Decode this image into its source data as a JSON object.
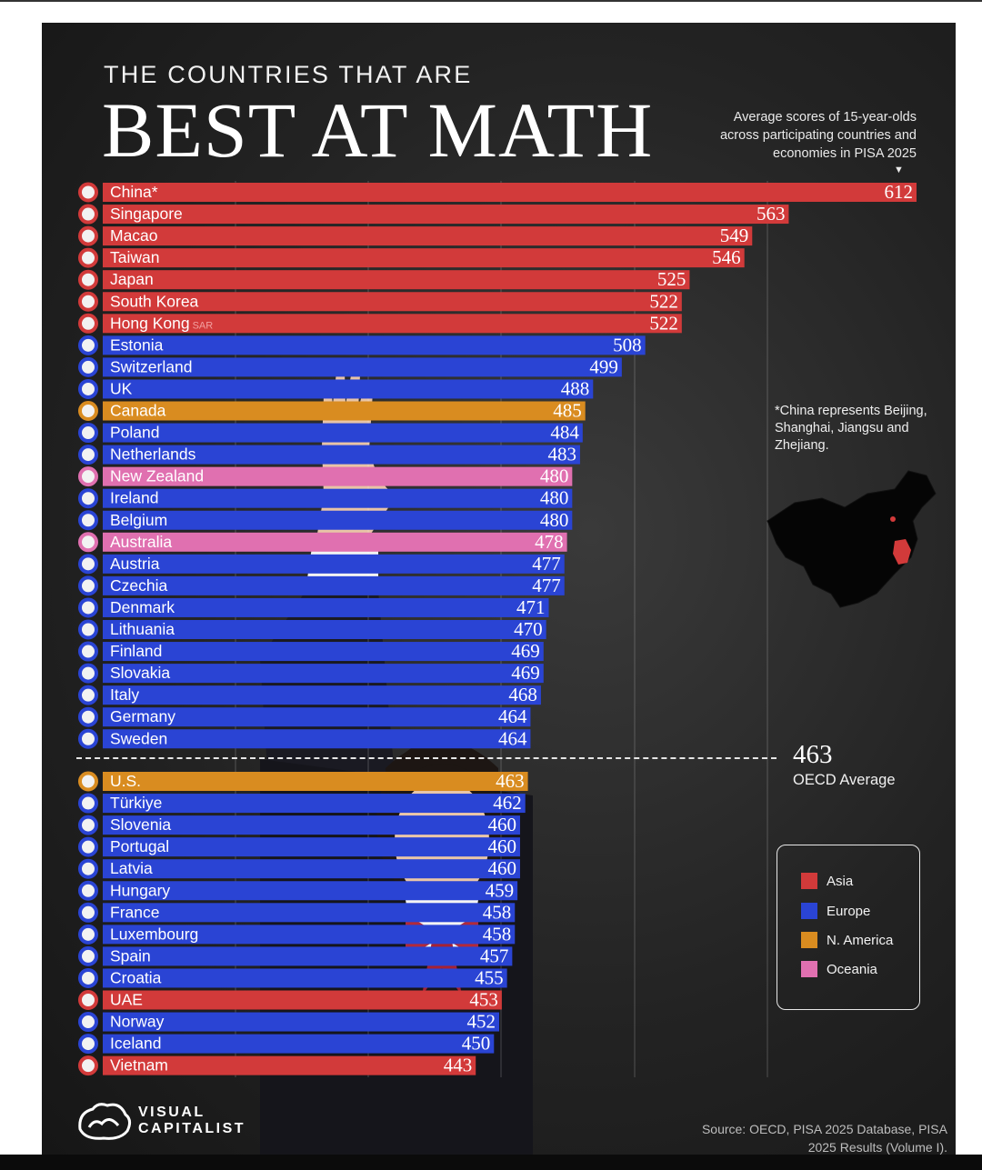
{
  "header": {
    "title_top": "THE COUNTRIES THAT ARE",
    "title_main": "BEST AT MATH",
    "subtitle": "Average scores of 15-year-olds across participating countries and economies in PISA 2025"
  },
  "footnote": "*China represents Beijing, Shanghai, Jiangsu and Zhejiang.",
  "colors": {
    "Asia": "#d23a3a",
    "Europe": "#2a44d4",
    "N. America": "#d98c20",
    "Oceania": "#e070b0"
  },
  "legend": [
    {
      "label": "Asia",
      "color": "#d23a3a"
    },
    {
      "label": "Europe",
      "color": "#2a44d4"
    },
    {
      "label": "N. America",
      "color": "#d98c20"
    },
    {
      "label": "Oceania",
      "color": "#e070b0"
    }
  ],
  "oecd": {
    "value": "463",
    "label": "OECD Average"
  },
  "source": "Source: OECD, PISA 2025 Database, PISA 2025 Results (Volume I).",
  "logo": {
    "line1": "VISUAL",
    "line2": "CAPITALIST"
  },
  "chart_data": {
    "type": "bar",
    "orientation": "horizontal",
    "title": "BEST AT MATH",
    "reference_line": {
      "label": "OECD Average",
      "value": 463
    },
    "categories": [
      "China*",
      "Singapore",
      "Macao",
      "Taiwan",
      "Japan",
      "South Korea",
      "Hong Kong",
      "Estonia",
      "Switzerland",
      "UK",
      "Canada",
      "Poland",
      "Netherlands",
      "New Zealand",
      "Ireland",
      "Belgium",
      "Australia",
      "Austria",
      "Czechia",
      "Denmark",
      "Lithuania",
      "Finland",
      "Slovakia",
      "Italy",
      "Germany",
      "Sweden",
      "U.S.",
      "Türkiye",
      "Slovenia",
      "Portugal",
      "Latvia",
      "Hungary",
      "France",
      "Luxembourg",
      "Spain",
      "Croatia",
      "UAE",
      "Norway",
      "Iceland",
      "Vietnam"
    ],
    "values": [
      612,
      563,
      549,
      546,
      525,
      522,
      522,
      508,
      499,
      488,
      485,
      484,
      483,
      480,
      480,
      480,
      478,
      477,
      477,
      471,
      470,
      469,
      469,
      468,
      464,
      464,
      463,
      462,
      460,
      460,
      460,
      459,
      458,
      458,
      457,
      455,
      453,
      452,
      450,
      443
    ],
    "regions": [
      "Asia",
      "Asia",
      "Asia",
      "Asia",
      "Asia",
      "Asia",
      "Asia",
      "Europe",
      "Europe",
      "Europe",
      "N. America",
      "Europe",
      "Europe",
      "Oceania",
      "Europe",
      "Europe",
      "Oceania",
      "Europe",
      "Europe",
      "Europe",
      "Europe",
      "Europe",
      "Europe",
      "Europe",
      "Europe",
      "Europe",
      "N. America",
      "Europe",
      "Europe",
      "Europe",
      "Europe",
      "Europe",
      "Europe",
      "Europe",
      "Europe",
      "Europe",
      "Asia",
      "Europe",
      "Europe",
      "Asia"
    ],
    "suffix": {
      "Hong Kong": "SAR"
    }
  }
}
